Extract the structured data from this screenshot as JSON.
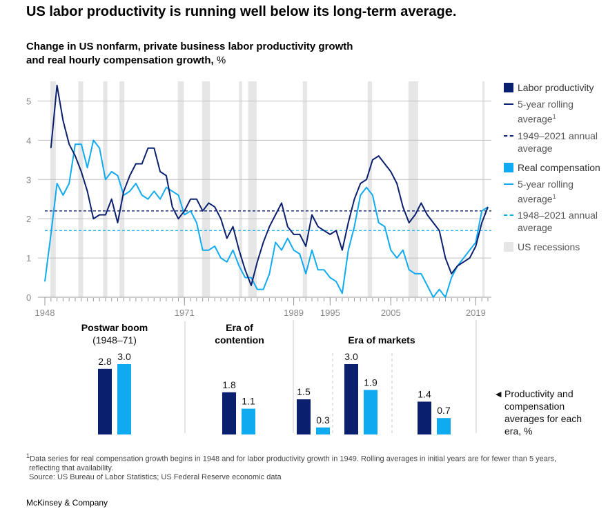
{
  "headline": "US labor productivity is running well below its long-term average.",
  "subtitle": {
    "line1": "Change in US nonfarm, private business labor productivity growth",
    "line2": "and real hourly compensation growth,",
    "unit": "%"
  },
  "legend": {
    "labor_productivity": "Labor productivity",
    "rolling_prod": "5-year rolling average",
    "rolling_prod_sup": "1",
    "avg_prod": "1949–2021 annual average",
    "real_comp": "Real compensation",
    "rolling_comp": "5-year rolling average",
    "rolling_comp_sup": "1",
    "avg_comp": "1948–2021 annual average",
    "recessions": "US recessions"
  },
  "colors": {
    "productivity": "#0a1f6e",
    "compensation": "#10aaf0",
    "recession": "#e6e6e6",
    "grid": "#bfbfbf"
  },
  "chart_data": [
    {
      "type": "line",
      "x_start": 1948,
      "x_end": 2021,
      "ylim": [
        0,
        5.5
      ],
      "yticks": [
        "0",
        "1",
        "2",
        "3",
        "4",
        "5"
      ],
      "xticks": [
        "1948",
        "1971",
        "1989",
        "1995",
        "2005",
        "2019"
      ],
      "grid": true,
      "series": [
        {
          "name": "Labor productivity 5-year rolling average",
          "x": [
            1949,
            1950,
            1951,
            1952,
            1953,
            1954,
            1955,
            1956,
            1957,
            1958,
            1959,
            1960,
            1961,
            1962,
            1963,
            1964,
            1965,
            1966,
            1967,
            1968,
            1969,
            1970,
            1971,
            1972,
            1973,
            1974,
            1975,
            1976,
            1977,
            1978,
            1979,
            1980,
            1981,
            1982,
            1983,
            1984,
            1985,
            1986,
            1987,
            1988,
            1989,
            1990,
            1991,
            1992,
            1993,
            1994,
            1995,
            1996,
            1997,
            1998,
            1999,
            2000,
            2001,
            2002,
            2003,
            2004,
            2005,
            2006,
            2007,
            2008,
            2009,
            2010,
            2011,
            2012,
            2013,
            2014,
            2015,
            2016,
            2017,
            2018,
            2019,
            2020,
            2021
          ],
          "values": [
            3.8,
            5.4,
            4.5,
            3.9,
            3.6,
            3.2,
            2.7,
            2.0,
            2.1,
            2.1,
            2.5,
            1.9,
            2.7,
            3.1,
            3.4,
            3.4,
            3.8,
            3.8,
            3.2,
            3.1,
            2.3,
            2.0,
            2.2,
            2.5,
            2.5,
            2.2,
            2.4,
            2.3,
            2.0,
            1.5,
            1.8,
            1.2,
            0.7,
            0.3,
            0.9,
            1.4,
            1.8,
            2.1,
            2.4,
            1.8,
            1.6,
            1.6,
            1.3,
            2.1,
            1.8,
            1.7,
            1.6,
            1.7,
            1.2,
            1.9,
            2.5,
            2.9,
            3.0,
            3.5,
            3.6,
            3.4,
            3.2,
            2.9,
            2.3,
            1.9,
            2.1,
            2.4,
            2.1,
            1.9,
            1.7,
            1.0,
            0.6,
            0.8,
            0.9,
            1.0,
            1.3,
            1.9,
            2.3
          ]
        },
        {
          "name": "Real compensation 5-year rolling average",
          "x": [
            1948,
            1949,
            1950,
            1951,
            1952,
            1953,
            1954,
            1955,
            1956,
            1957,
            1958,
            1959,
            1960,
            1961,
            1962,
            1963,
            1964,
            1965,
            1966,
            1967,
            1968,
            1969,
            1970,
            1971,
            1972,
            1973,
            1974,
            1975,
            1976,
            1977,
            1978,
            1979,
            1980,
            1981,
            1982,
            1983,
            1984,
            1985,
            1986,
            1987,
            1988,
            1989,
            1990,
            1991,
            1992,
            1993,
            1994,
            1995,
            1996,
            1997,
            1998,
            1999,
            2000,
            2001,
            2002,
            2003,
            2004,
            2005,
            2006,
            2007,
            2008,
            2009,
            2010,
            2011,
            2012,
            2013,
            2014,
            2015,
            2016,
            2017,
            2018,
            2019,
            2020,
            2021
          ],
          "values": [
            0.4,
            1.6,
            2.9,
            2.6,
            2.9,
            3.9,
            3.9,
            3.3,
            4.0,
            3.8,
            3.0,
            3.2,
            3.1,
            2.6,
            2.7,
            2.9,
            2.6,
            2.5,
            2.7,
            2.5,
            2.8,
            2.7,
            2.6,
            2.1,
            2.2,
            1.9,
            1.2,
            1.2,
            1.3,
            1.0,
            0.9,
            1.2,
            0.8,
            0.5,
            0.5,
            0.2,
            0.2,
            0.6,
            1.4,
            1.2,
            1.5,
            1.2,
            1.1,
            0.6,
            1.2,
            0.7,
            0.7,
            0.5,
            0.4,
            0.1,
            1.2,
            1.8,
            2.6,
            2.8,
            2.6,
            1.9,
            1.8,
            1.2,
            1.0,
            1.2,
            0.7,
            0.6,
            0.6,
            0.3,
            0.0,
            0.2,
            0.0,
            0.5,
            0.8,
            1.0,
            1.2,
            1.4,
            2.2,
            2.3
          ]
        }
      ],
      "reference_lines": [
        {
          "name": "1949–2021 annual average",
          "value": 2.2
        },
        {
          "name": "1948–2021 annual average",
          "value": 1.7
        }
      ],
      "recessions": [
        [
          1948.9,
          1949.8
        ],
        [
          1953.5,
          1954.3
        ],
        [
          1957.6,
          1958.3
        ],
        [
          1960.3,
          1961.1
        ],
        [
          1969.9,
          1970.9
        ],
        [
          1973.9,
          1975.2
        ],
        [
          1980.0,
          1980.5
        ],
        [
          1981.5,
          1982.9
        ],
        [
          1990.5,
          1991.2
        ],
        [
          2001.2,
          2001.9
        ],
        [
          2007.9,
          2009.5
        ],
        [
          2020.1,
          2020.4
        ]
      ]
    },
    {
      "type": "bar",
      "title": "Productivity and compensation averages for each era, %",
      "eras": [
        {
          "title": "Postwar boom",
          "subtitle": "(1948–71)",
          "periods": [
            {
              "productivity": 2.8,
              "compensation": 3.0
            }
          ]
        },
        {
          "title": "Era of contention",
          "subtitle": "",
          "periods": [
            {
              "productivity": 1.8,
              "compensation": 1.1
            }
          ]
        },
        {
          "title": "Era of markets",
          "subtitle": "",
          "periods": [
            {
              "productivity": 1.5,
              "compensation": 0.3
            },
            {
              "productivity": 3.0,
              "compensation": 1.9
            },
            {
              "productivity": 1.4,
              "compensation": 0.7
            }
          ]
        }
      ]
    }
  ],
  "era_titles": {
    "postwar": "Postwar boom",
    "postwar_years": "(1948–71)",
    "contention_1": "Era of",
    "contention_2": "contention",
    "markets": "Era of markets"
  },
  "bar_labels": {
    "postwar_prod": "2.8",
    "postwar_comp": "3.0",
    "contention_prod": "1.8",
    "contention_comp": "1.1",
    "m1_prod": "1.5",
    "m1_comp": "0.3",
    "m2_prod": "3.0",
    "m2_comp": "1.9",
    "m3_prod": "1.4",
    "m3_comp": "0.7"
  },
  "note": {
    "marker": "◀",
    "text": "Productivity and compensation averages for each era, %"
  },
  "footnote": {
    "sup": "1",
    "line1": "Data series for real compensation growth begins in 1948 and for labor productivity growth in 1949. Rolling averages in initial years are for fewer than 5 years,",
    "line2": "reflecting that availability.",
    "source": "Source: US Bureau of Labor Statistics; US Federal Reserve economic data"
  },
  "brand": "McKinsey & Company"
}
